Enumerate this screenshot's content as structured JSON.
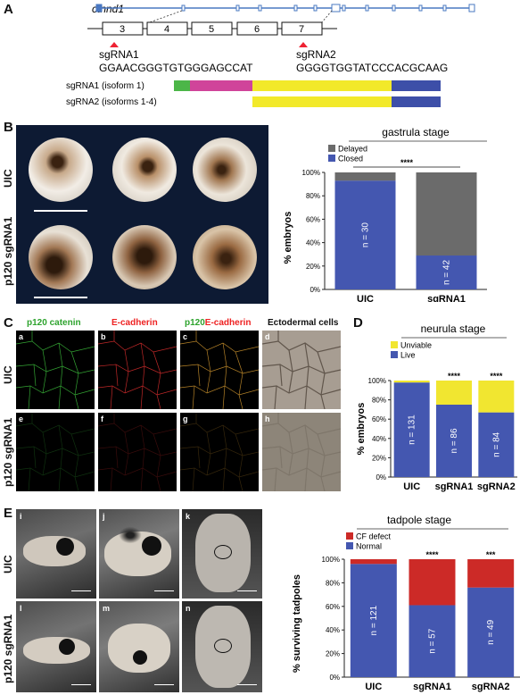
{
  "panel_labels": {
    "a": "A",
    "b": "B",
    "c": "C",
    "d": "D",
    "e": "E"
  },
  "gene": {
    "name": "ctnnd1",
    "exons": [
      "3",
      "4",
      "5",
      "6",
      "7"
    ],
    "sgrna1": {
      "name": "sgRNA1",
      "seq": "GGAACGGGTGTGGGAGCCAT"
    },
    "sgrna2": {
      "name": "sgRNA2",
      "seq": "GGGGTGGTATCCCACGCAAG"
    },
    "isoform_rows": [
      {
        "label": "sgRNA1 (isoform 1)"
      },
      {
        "label": "sgRNA2 (isoforms 1-4)"
      }
    ],
    "colors": {
      "green": "#4cb648",
      "magenta": "#d0449a",
      "yellow": "#f2e92a",
      "blue": "#3d4fa8",
      "intron": "#4a78c2"
    }
  },
  "panel_b": {
    "row_labels": [
      "UIC",
      "p120 sgRNA1"
    ]
  },
  "panel_c": {
    "col_headers": {
      "c1": "p120 catenin",
      "c2": "E-cadherin",
      "c3a": "p120",
      "c3b": "E-cadherin",
      "c4": "Ectodermal cells"
    },
    "row_labels": [
      "UIC",
      "p120 sgRNA1"
    ],
    "sub_labels": [
      "a",
      "b",
      "c",
      "d",
      "e",
      "f",
      "g",
      "h"
    ]
  },
  "panel_e": {
    "row_labels": [
      "UIC",
      "p120 sgRNA1"
    ],
    "sub_labels": [
      "i",
      "j",
      "k",
      "l",
      "m",
      "n"
    ]
  },
  "chart_data": [
    {
      "type": "bar",
      "stacked": true,
      "title": "gastrula stage",
      "categories": [
        "UIC",
        "sgRNA1"
      ],
      "series": [
        {
          "name": "Closed",
          "color": "#4457b0",
          "values": [
            93,
            29
          ]
        },
        {
          "name": "Delayed",
          "color": "#6b6b6b",
          "values": [
            7,
            71
          ]
        }
      ],
      "n_labels": [
        "n = 30",
        "n = 42"
      ],
      "significance": "****",
      "ylabel": "% embryos",
      "ylim": [
        0,
        100
      ],
      "yticks": [
        "0%",
        "20%",
        "40%",
        "60%",
        "80%",
        "100%"
      ],
      "legend": "top-left"
    },
    {
      "type": "bar",
      "stacked": true,
      "title": "neurula stage",
      "categories": [
        "UIC",
        "sgRNA1",
        "sgRNA2"
      ],
      "series": [
        {
          "name": "Live",
          "color": "#4457b0",
          "values": [
            98,
            75,
            67
          ]
        },
        {
          "name": "Unviable",
          "color": "#f1e630",
          "values": [
            2,
            25,
            33
          ]
        }
      ],
      "n_labels": [
        "n = 131",
        "n = 86",
        "n = 84"
      ],
      "significance": [
        "",
        "****",
        "****"
      ],
      "ylabel": "% embryos",
      "ylim": [
        0,
        100
      ],
      "yticks": [
        "0%",
        "20%",
        "40%",
        "60%",
        "80%",
        "100%"
      ],
      "legend": "top-left"
    },
    {
      "type": "bar",
      "stacked": true,
      "title": "tadpole stage",
      "categories": [
        "UIC",
        "sgRNA1",
        "sgRNA2"
      ],
      "series": [
        {
          "name": "Normal",
          "color": "#4457b0",
          "values": [
            96,
            61,
            76
          ]
        },
        {
          "name": "CF defect",
          "color": "#cc2a27",
          "values": [
            4,
            39,
            24
          ]
        }
      ],
      "n_labels": [
        "n = 121",
        "n = 57",
        "n = 49"
      ],
      "significance": [
        "",
        "****",
        "***"
      ],
      "ylabel": "% surviving tadpoles",
      "ylim": [
        0,
        100
      ],
      "yticks": [
        "0%",
        "20%",
        "40%",
        "60%",
        "80%",
        "100%"
      ],
      "legend": "top-left"
    }
  ]
}
